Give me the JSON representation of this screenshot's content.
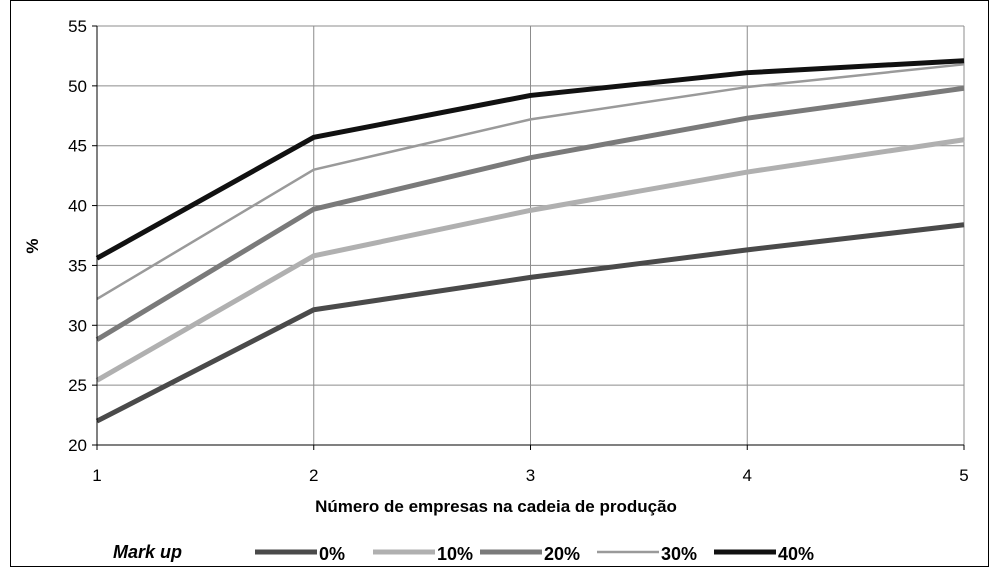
{
  "chart_data": {
    "type": "line",
    "x": [
      1,
      2,
      3,
      4,
      5
    ],
    "xlabel": "Número de empresas na cadeia de produção",
    "ylabel": "%",
    "ylim": [
      20,
      55
    ],
    "yticks": [
      20,
      25,
      30,
      35,
      40,
      45,
      50,
      55
    ],
    "grid": true,
    "legend_title": "Mark up",
    "legend_position": "bottom",
    "series": [
      {
        "name": "0%",
        "values": [
          22.0,
          31.3,
          34.0,
          36.3,
          38.4
        ],
        "color": "#4a4a4a",
        "width": 5
      },
      {
        "name": "10%",
        "values": [
          25.4,
          35.8,
          39.6,
          42.8,
          45.5
        ],
        "color": "#b0b0b0",
        "width": 5
      },
      {
        "name": "20%",
        "values": [
          28.8,
          39.7,
          44.0,
          47.3,
          49.8
        ],
        "color": "#7a7a7a",
        "width": 5
      },
      {
        "name": "30%",
        "values": [
          32.2,
          43.0,
          47.2,
          49.9,
          51.8
        ],
        "color": "#9a9a9a",
        "width": 2.5
      },
      {
        "name": "40%",
        "values": [
          35.6,
          45.7,
          49.2,
          51.1,
          52.1
        ],
        "color": "#111111",
        "width": 5
      }
    ]
  }
}
